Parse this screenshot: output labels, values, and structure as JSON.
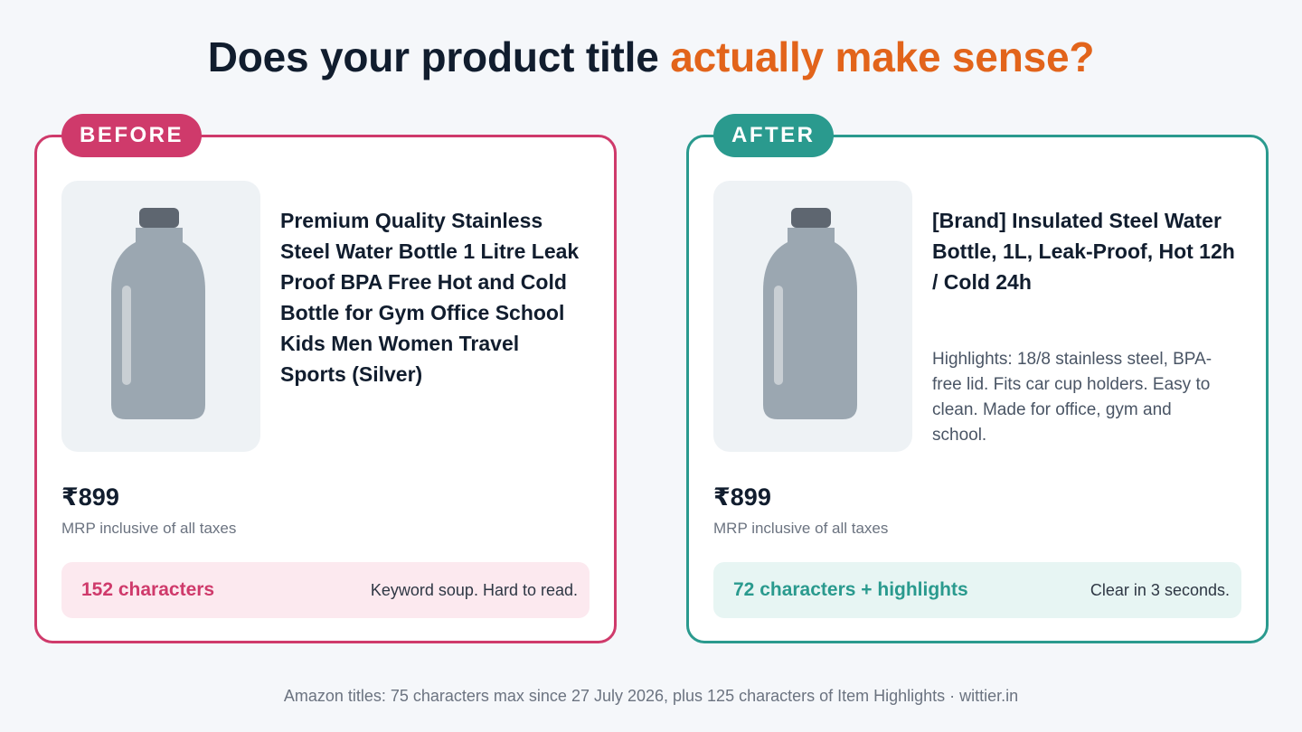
{
  "headline": {
    "part1": "Does your product title ",
    "accent": "actually make sense?"
  },
  "before": {
    "badge": "BEFORE",
    "title": "Premium Quality Stainless Steel Water Bottle 1 Litre Leak Proof BPA Free Hot and Cold Bottle for Gym Office School Kids Men Women Travel Sports (Silver)",
    "price": "₹899",
    "mrp": "MRP inclusive of all taxes",
    "count": "152 characters",
    "note": "Keyword soup. Hard to read."
  },
  "after": {
    "badge": "AFTER",
    "title": "[Brand] Insulated Steel Water Bottle, 1L, Leak-Proof, Hot 12h / Cold 24h",
    "highlights": "Highlights: 18/8 stainless steel, BPA-free lid. Fits car cup holders. Easy to clean. Made for office, gym and school.",
    "price": "₹899",
    "mrp": "MRP inclusive of all taxes",
    "count": "72 characters + highlights",
    "note": "Clear in 3 seconds."
  },
  "footer": "Amazon titles: 75 characters max since 27 July 2026, plus 125 characters of Item Highlights · wittier.in",
  "colors": {
    "before_accent": "#cf3a6b",
    "after_accent": "#2a9a8e",
    "headline_accent": "#e2641b"
  },
  "icons": {
    "product_image": "water-bottle-icon"
  }
}
